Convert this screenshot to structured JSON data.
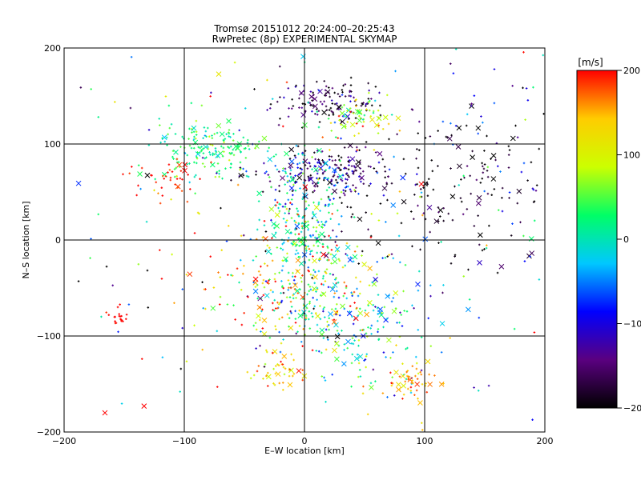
{
  "chart_data": {
    "type": "scatter",
    "title": "Tromsø 20151012 20:24:00–20:25:43",
    "subtitle": "RwPretec (8p) EXPERIMENTAL SKYMAP",
    "xlabel": "E–W location [km]",
    "ylabel": "N–S location [km]",
    "xlim": [
      -200,
      200
    ],
    "ylim": [
      -200,
      200
    ],
    "xticks": [
      -200,
      -100,
      0,
      100,
      200
    ],
    "yticks": [
      -200,
      -100,
      0,
      100,
      200
    ],
    "grid": true,
    "colorbar": {
      "label": "[m/s]",
      "min": -200,
      "max": 200,
      "ticks": [
        200,
        100,
        0,
        -100,
        -200
      ],
      "colormap": [
        "#000000",
        "#5a0080",
        "#0000ff",
        "#00c8ff",
        "#00ff66",
        "#ccff00",
        "#ffcc00",
        "#ff0000"
      ]
    },
    "markers": {
      "small": "+",
      "large": "x"
    },
    "clusters": [
      {
        "x": 20,
        "y": 145,
        "sx": 25,
        "sy": 12,
        "n": 130,
        "v": -170,
        "vs": 40
      },
      {
        "x": 45,
        "y": 130,
        "sx": 14,
        "sy": 10,
        "n": 60,
        "v": 80,
        "vs": 60
      },
      {
        "x": -75,
        "y": 95,
        "sx": 25,
        "sy": 15,
        "n": 170,
        "v": 30,
        "vs": 25
      },
      {
        "x": -115,
        "y": 65,
        "sx": 12,
        "sy": 10,
        "n": 40,
        "v": 190,
        "vs": 12
      },
      {
        "x": 15,
        "y": 70,
        "sx": 25,
        "sy": 12,
        "n": 200,
        "v": -140,
        "vs": 50
      },
      {
        "x": 100,
        "y": 50,
        "sx": 55,
        "sy": 35,
        "n": 150,
        "v": -190,
        "vs": 20
      },
      {
        "x": 0,
        "y": 10,
        "sx": 18,
        "sy": 40,
        "n": 250,
        "v": 0,
        "vs": 45
      },
      {
        "x": 10,
        "y": -60,
        "sx": 30,
        "sy": 35,
        "n": 200,
        "v": 60,
        "vs": 110
      },
      {
        "x": 55,
        "y": -90,
        "sx": 25,
        "sy": 35,
        "n": 130,
        "v": -10,
        "vs": 60
      },
      {
        "x": -30,
        "y": -40,
        "sx": 35,
        "sy": 40,
        "n": 110,
        "v": 150,
        "vs": 60
      },
      {
        "x": 90,
        "y": -145,
        "sx": 12,
        "sy": 10,
        "n": 50,
        "v": 150,
        "vs": 25
      },
      {
        "x": -20,
        "y": -140,
        "sx": 12,
        "sy": 12,
        "n": 40,
        "v": 140,
        "vs": 30
      },
      {
        "x": -155,
        "y": -80,
        "sx": 5,
        "sy": 5,
        "n": 20,
        "v": 200,
        "vs": 5
      },
      {
        "x": 0,
        "y": 0,
        "sx": 120,
        "sy": 120,
        "n": 250,
        "v": 0,
        "vs": 130
      },
      {
        "x": 150,
        "y": 100,
        "sx": 40,
        "sy": 50,
        "n": 60,
        "v": -150,
        "vs": 70
      }
    ]
  }
}
